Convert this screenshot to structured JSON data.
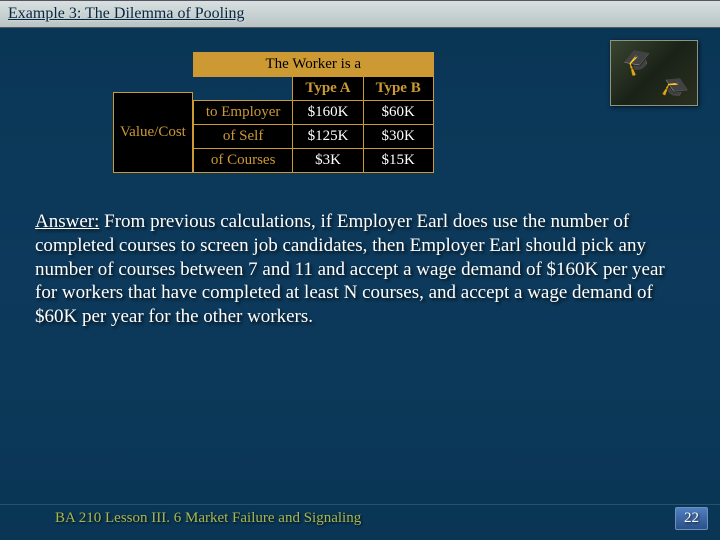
{
  "title": "Example 3: The Dilemma of Pooling",
  "table": {
    "leftLabel": "Value/Cost",
    "headerSpan": "The Worker is a",
    "colHeaders": [
      "Type A",
      "Type B"
    ],
    "rowLabels": [
      "to Employer",
      "of Self",
      "of Courses"
    ],
    "cells": [
      [
        "$160K",
        "$60K"
      ],
      [
        "$125K",
        "$30K"
      ],
      [
        "$3K",
        "$15K"
      ]
    ]
  },
  "answer": {
    "label": "Answer:",
    "body": " From previous calculations, if Employer Earl does use the number of completed courses to screen job candidates, then Employer Earl should pick any number of courses between 7 and 11 and accept a wage demand of $160K per year for workers that have completed at least N courses, and accept a wage demand of $60K per year for the other workers."
  },
  "footer": "BA 210  Lesson III. 6 Market Failure and Signaling",
  "pageNumber": "22",
  "colors": {
    "background": "#0d3a5c",
    "accent": "#cc9933",
    "titleBar": "#c8d0d0",
    "footerText": "#a8b850"
  }
}
